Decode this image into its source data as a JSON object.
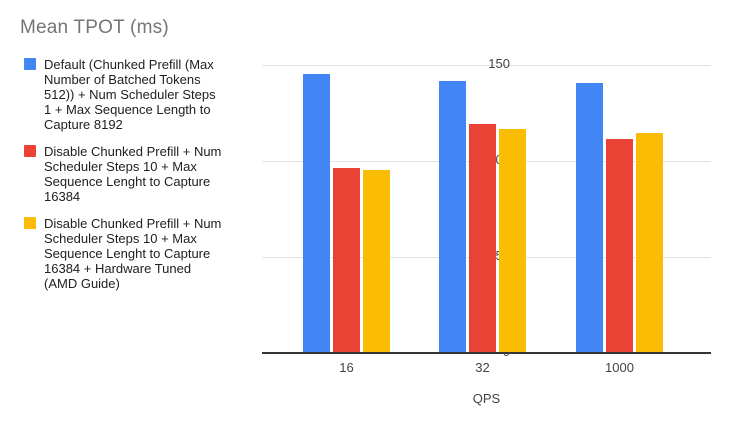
{
  "chart_data": {
    "type": "bar",
    "title": "Mean TPOT (ms)",
    "xlabel": "QPS",
    "ylabel": "",
    "categories": [
      "16",
      "32",
      "1000"
    ],
    "series": [
      {
        "name": "Default (Chunked Prefill (Max Number of Batched Tokens 512)) + Num Scheduler Steps 1 + Max Sequence Length to Capture 8192",
        "color": "#4285F4",
        "values": [
          145,
          141,
          140
        ]
      },
      {
        "name": "Disable Chunked Prefill + Num Scheduler Steps 10 + Max Sequence Lenght to Capture 16384",
        "color": "#EA4335",
        "values": [
          96,
          119,
          111
        ]
      },
      {
        "name": "Disable Chunked Prefill + Num Scheduler Steps 10 + Max Sequence Lenght to Capture 16384 + Hardware Tuned (AMD Guide)",
        "color": "#FBBC04",
        "values": [
          95,
          116,
          114
        ]
      }
    ],
    "ylim": [
      0,
      150
    ],
    "yticks": [
      0,
      50,
      100,
      150
    ],
    "grid": true,
    "legend_position": "left",
    "colors": {
      "background": "#ffffff",
      "title": "#757575",
      "tick_label": "#444444",
      "legend_text": "#212121",
      "gridline": "#e2e2e2",
      "axis_line": "#333333"
    }
  }
}
